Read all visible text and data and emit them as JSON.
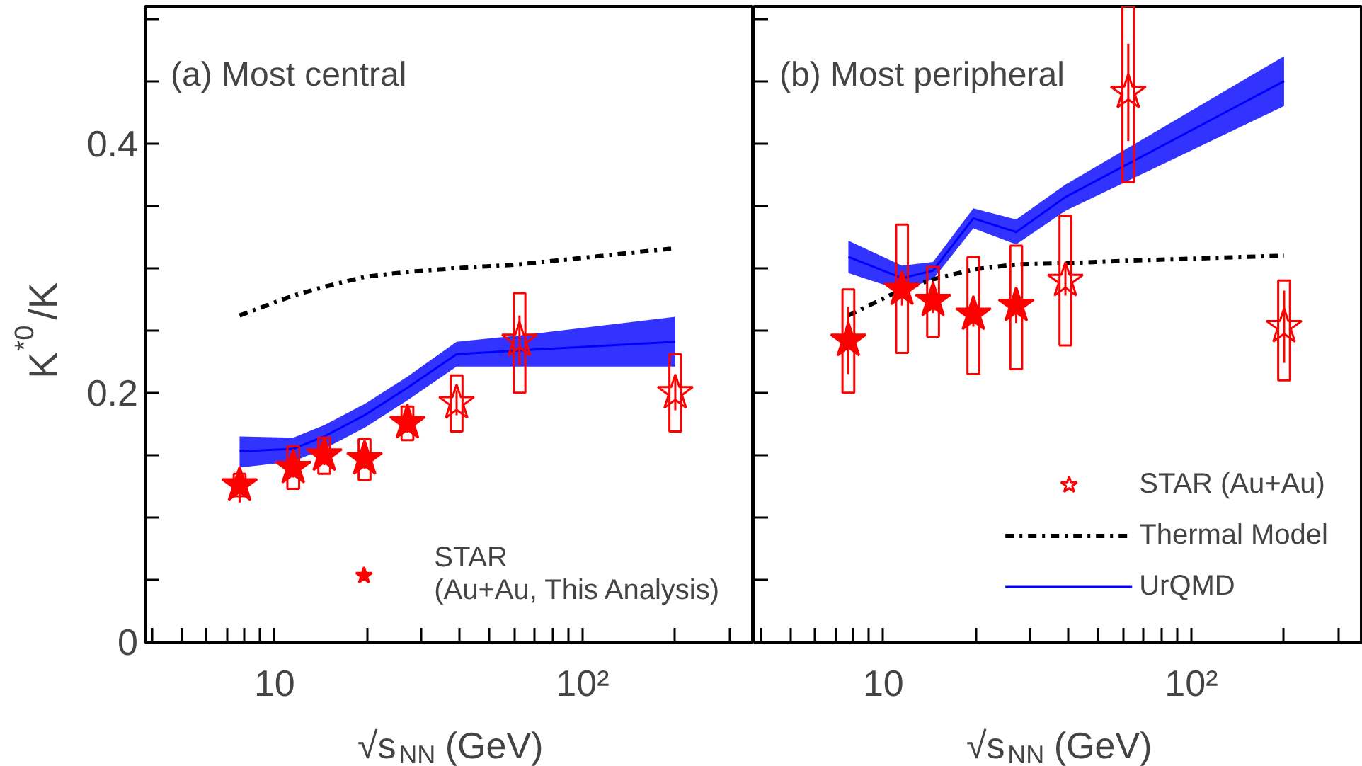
{
  "chart_data": [
    {
      "type": "scatter",
      "title": "(a) Most central",
      "xlabel": "√s$_{NN}$ (GeV)",
      "ylabel": "K$^{*0}$/K",
      "log": "x",
      "grid": false,
      "legend": "bottom right",
      "xlim": [
        3.8,
        360
      ],
      "ylim": [
        0,
        0.51
      ],
      "xticks": [
        {
          "value": 4,
          "label": null
        },
        {
          "value": 5,
          "label": null
        },
        {
          "value": 6,
          "label": null
        },
        {
          "value": 7,
          "label": null
        },
        {
          "value": 8,
          "label": null
        },
        {
          "value": 9,
          "label": null
        },
        10,
        {
          "value": 20,
          "label": null
        },
        {
          "value": 30,
          "label": null
        },
        {
          "value": 40,
          "label": null
        },
        {
          "value": 50,
          "label": null
        },
        {
          "value": 60,
          "label": null
        },
        {
          "value": 70,
          "label": null
        },
        {
          "value": 80,
          "label": null
        },
        {
          "value": 90,
          "label": null
        },
        {
          "value": 100,
          "label": "10²"
        },
        {
          "value": 200,
          "label": null
        },
        {
          "value": 300,
          "label": null
        }
      ],
      "yticks": [
        0,
        {
          "value": 0.05,
          "label": null
        },
        {
          "value": 0.1,
          "label": null
        },
        {
          "value": 0.15,
          "label": null
        },
        0.2,
        {
          "value": 0.25,
          "label": null
        },
        {
          "value": 0.3,
          "label": null
        },
        {
          "value": 0.35,
          "label": null
        },
        0.4,
        {
          "value": 0.45,
          "label": null
        },
        {
          "value": 0.5,
          "label": null
        }
      ],
      "series": [
        {
          "type": "line",
          "color": "#0000ff",
          "x": [
            7.7,
            11.5,
            14.5,
            19.6,
            27,
            39,
            62.4,
            200
          ],
          "values": [
            0.153,
            0.155,
            0.165,
            0.182,
            0.204,
            0.231,
            0.234,
            0.241
          ],
          "lower": [
            0.14,
            0.145,
            0.155,
            0.172,
            0.194,
            0.221,
            0.221,
            0.221
          ],
          "upper": [
            0.165,
            0.164,
            0.174,
            0.191,
            0.213,
            0.241,
            0.246,
            0.261
          ]
        },
        {
          "type": "line",
          "color": "#000000",
          "line_style": "dashdot",
          "x": [
            7.7,
            11.5,
            14.5,
            19.6,
            27,
            39,
            62.4,
            200
          ],
          "values": [
            0.262,
            0.278,
            0.285,
            0.293,
            0.297,
            0.3,
            0.303,
            0.316
          ]
        },
        {
          "type": "bar",
          "color": "#ff0000",
          "x": [
            7.7,
            11.5,
            14.5,
            19.6,
            27,
            39,
            62.4,
            200
          ],
          "base": [
            0.117,
            0.123,
            0.135,
            0.13,
            0.162,
            0.169,
            0.2,
            0.169
          ],
          "values": [
            0.018,
            0.034,
            0.029,
            0.033,
            0.027,
            0.045,
            0.08,
            0.062
          ]
        },
        {
          "marker": "star",
          "name": "STAR\n(Au+Au, This Analysis)",
          "color": "#ff0000",
          "x": [
            7.7,
            11.5,
            14.5,
            19.6,
            27
          ],
          "values": [
            0.126,
            0.14,
            0.15,
            0.147,
            0.176
          ],
          "errors": [
            0.014,
            0.008,
            0.008,
            0.008,
            0.008
          ]
        },
        {
          "marker": "star_open",
          "color": "#ff0000",
          "x": [
            39,
            62.4,
            200
          ],
          "values": [
            0.192,
            0.242,
            0.2
          ],
          "errors": [
            0.01,
            0.02,
            0.014
          ]
        }
      ]
    },
    {
      "type": "scatter",
      "title": "(b) Most peripheral",
      "xlabel": "√s$_{NN}$ (GeV)",
      "log": "x",
      "grid": false,
      "legend": "bottom right",
      "tick_labels": "x",
      "xlim": [
        3.8,
        360
      ],
      "ylim": [
        0,
        0.51
      ],
      "xticks": [
        {
          "value": 4,
          "label": null
        },
        {
          "value": 5,
          "label": null
        },
        {
          "value": 6,
          "label": null
        },
        {
          "value": 7,
          "label": null
        },
        {
          "value": 8,
          "label": null
        },
        {
          "value": 9,
          "label": null
        },
        10,
        {
          "value": 20,
          "label": null
        },
        {
          "value": 30,
          "label": null
        },
        {
          "value": 40,
          "label": null
        },
        {
          "value": 50,
          "label": null
        },
        {
          "value": 60,
          "label": null
        },
        {
          "value": 70,
          "label": null
        },
        {
          "value": 80,
          "label": null
        },
        {
          "value": 90,
          "label": null
        },
        {
          "value": 100,
          "label": "10²"
        },
        {
          "value": 200,
          "label": null
        },
        {
          "value": 300,
          "label": null
        }
      ],
      "yticks": [
        0,
        {
          "value": 0.05,
          "label": null
        },
        {
          "value": 0.1,
          "label": null
        },
        {
          "value": 0.15,
          "label": null
        },
        0.2,
        {
          "value": 0.25,
          "label": null
        },
        {
          "value": 0.3,
          "label": null
        },
        {
          "value": 0.35,
          "label": null
        },
        0.4,
        {
          "value": 0.45,
          "label": null
        },
        {
          "value": 0.5,
          "label": null
        }
      ],
      "series": [
        {
          "type": "line",
          "name": "UrQMD",
          "color": "#0000ff",
          "x": [
            7.7,
            11.5,
            14.5,
            19.6,
            27,
            39,
            200
          ],
          "values": [
            0.309,
            0.292,
            0.298,
            0.34,
            0.329,
            0.357,
            0.45
          ],
          "lower": [
            0.296,
            0.282,
            0.291,
            0.332,
            0.319,
            0.346,
            0.43
          ],
          "upper": [
            0.322,
            0.302,
            0.305,
            0.348,
            0.339,
            0.367,
            0.47
          ]
        },
        {
          "type": "line",
          "name": "Thermal Model",
          "color": "#000000",
          "line_style": "dashdot",
          "x": [
            7.7,
            11.5,
            14.5,
            19.6,
            27,
            39,
            62.4,
            200
          ],
          "values": [
            0.262,
            0.283,
            0.291,
            0.299,
            0.303,
            0.304,
            0.306,
            0.31
          ]
        },
        {
          "type": "bar",
          "color": "#ff0000",
          "x": [
            7.7,
            11.5,
            14.5,
            19.6,
            27,
            39,
            62.4,
            200
          ],
          "base": [
            0.2,
            0.232,
            0.245,
            0.215,
            0.219,
            0.238,
            0.369,
            0.21
          ],
          "values": [
            0.083,
            0.103,
            0.056,
            0.094,
            0.099,
            0.104,
            0.141,
            0.08
          ]
        },
        {
          "marker": "star",
          "color": "#ff0000",
          "x": [
            7.7,
            11.5,
            14.5,
            19.6,
            27
          ],
          "values": [
            0.242,
            0.283,
            0.274,
            0.263,
            0.27
          ],
          "errors": [
            0.027,
            0.013,
            0.01,
            0.01,
            0.014
          ]
        },
        {
          "marker": "star_open",
          "name": "STAR (Au+Au)",
          "color": "#ff0000",
          "x": [
            39,
            62.4,
            200
          ],
          "values": [
            0.29,
            0.441,
            0.253
          ],
          "errors": [
            0.012,
            0.039,
            0.029
          ]
        }
      ]
    }
  ]
}
